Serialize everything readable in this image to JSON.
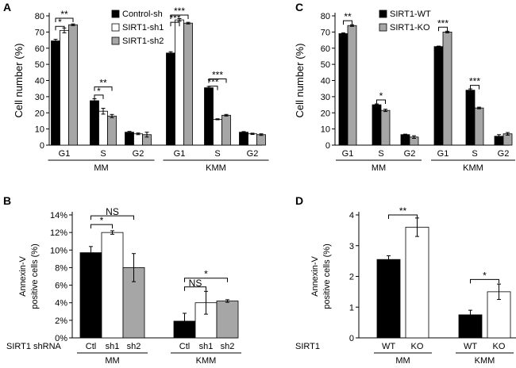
{
  "chart_data": [
    {
      "panel": "A",
      "type": "bar",
      "ylabel": "Cell number (%)",
      "ylim": [
        0,
        80
      ],
      "yticks": [
        0,
        10,
        20,
        30,
        40,
        50,
        60,
        70,
        80
      ],
      "categories": [
        "G1",
        "S",
        "G2",
        "G1",
        "S",
        "G2"
      ],
      "groups": [
        "MM",
        "KMM"
      ],
      "series": [
        {
          "name": "Control-sh",
          "color": "#000000",
          "values": [
            64.5,
            27.5,
            8,
            57,
            35.5,
            8
          ],
          "errors": [
            1,
            1.2,
            0.5,
            0.8,
            0.8,
            0.4
          ]
        },
        {
          "name": "SIRT1-sh1",
          "color": "#ffffff",
          "values": [
            71,
            21,
            7,
            77.5,
            16,
            7
          ],
          "errors": [
            1.5,
            1.8,
            0.5,
            0.8,
            0.3,
            0.4
          ]
        },
        {
          "name": "SIRT1-sh2",
          "color": "#a6a6a6",
          "values": [
            74.5,
            18,
            6.5,
            75.5,
            18.5,
            6.5
          ],
          "errors": [
            0.5,
            1,
            1.5,
            0.5,
            0.5,
            0.5
          ]
        }
      ],
      "significance": [
        {
          "label": "*",
          "cat": 0,
          "from": 0,
          "to": 1,
          "y": 73.5
        },
        {
          "label": "**",
          "cat": 0,
          "from": 0,
          "to": 2,
          "y": 78.5
        },
        {
          "label": "*",
          "cat": 1,
          "from": 0,
          "to": 1,
          "y": 31
        },
        {
          "label": "**",
          "cat": 1,
          "from": 0,
          "to": 2,
          "y": 36
        },
        {
          "label": "***",
          "cat": 3,
          "from": 0,
          "to": 1,
          "y": 76
        },
        {
          "label": "***",
          "cat": 3,
          "from": 0,
          "to": 2,
          "y": 80.5
        },
        {
          "label": "***",
          "cat": 4,
          "from": 0,
          "to": 1,
          "y": 36.5
        },
        {
          "label": "***",
          "cat": 4,
          "from": 0,
          "to": 2,
          "y": 41
        }
      ]
    },
    {
      "panel": "C",
      "type": "bar",
      "ylabel": "Cell number (%)",
      "ylim": [
        0,
        80
      ],
      "yticks": [
        0,
        10,
        20,
        30,
        40,
        50,
        60,
        70,
        80
      ],
      "categories": [
        "G1",
        "S",
        "G2",
        "G1",
        "S",
        "G2"
      ],
      "groups": [
        "MM",
        "KMM"
      ],
      "series": [
        {
          "name": "SIRT1-WT",
          "color": "#000000",
          "values": [
            69,
            25,
            6.5,
            61,
            34,
            5.5
          ],
          "errors": [
            0.5,
            0.5,
            0.3,
            0.3,
            0.8,
            1
          ]
        },
        {
          "name": "SIRT1-KO",
          "color": "#a6a6a6",
          "values": [
            74,
            21.5,
            5,
            70,
            23,
            7
          ],
          "errors": [
            0.5,
            0.7,
            0.8,
            0.5,
            0.5,
            0.8
          ]
        }
      ],
      "significance": [
        {
          "label": "**",
          "cat": 0,
          "from": 0,
          "to": 1,
          "y": 77
        },
        {
          "label": "*",
          "cat": 1,
          "from": 0,
          "to": 1,
          "y": 28
        },
        {
          "label": "***",
          "cat": 3,
          "from": 0,
          "to": 1,
          "y": 73
        },
        {
          "label": "***",
          "cat": 4,
          "from": 0,
          "to": 1,
          "y": 37
        }
      ]
    },
    {
      "panel": "B",
      "type": "bar",
      "ylabel_lines": [
        "Annexin-V",
        "positive cells (%)"
      ],
      "ylim": [
        0,
        14
      ],
      "yticks": [
        0,
        2,
        4,
        6,
        8,
        10,
        12,
        14
      ],
      "tick_suffix": "%",
      "row_label": "SIRT1 shRNA",
      "bar_labels": [
        "Ctl",
        "sh1",
        "sh2",
        "Ctl",
        "sh1",
        "sh2"
      ],
      "groups": [
        "MM",
        "KMM"
      ],
      "bars": [
        {
          "value": 9.7,
          "error": 0.7,
          "color": "#000000"
        },
        {
          "value": 12,
          "error": 0.2,
          "color": "#ffffff"
        },
        {
          "value": 8,
          "error": 1.6,
          "color": "#a6a6a6"
        },
        {
          "value": 1.9,
          "error": 0.9,
          "color": "#000000"
        },
        {
          "value": 4,
          "error": 1.3,
          "color": "#ffffff"
        },
        {
          "value": 4.2,
          "error": 0.15,
          "color": "#a6a6a6"
        }
      ],
      "significance": [
        {
          "label": "*",
          "from": 0,
          "to": 1,
          "y": 12.9
        },
        {
          "label": "NS",
          "from": 0,
          "to": 2,
          "y": 13.9
        },
        {
          "label": "NS",
          "from": 3,
          "to": 4,
          "y": 5.8
        },
        {
          "label": "*",
          "from": 3,
          "to": 5,
          "y": 6.8
        }
      ]
    },
    {
      "panel": "D",
      "type": "bar",
      "ylabel_lines": [
        "Annexin-V",
        "positive cells (%)"
      ],
      "ylim": [
        0,
        4
      ],
      "yticks": [
        0,
        1,
        2,
        3,
        4
      ],
      "row_label": "SIRT1",
      "bar_labels": [
        "WT",
        "KO",
        "WT",
        "KO"
      ],
      "groups": [
        "MM",
        "KMM"
      ],
      "bars": [
        {
          "value": 2.55,
          "error": 0.12,
          "color": "#000000"
        },
        {
          "value": 3.6,
          "error": 0.3,
          "color": "#ffffff"
        },
        {
          "value": 0.75,
          "error": 0.15,
          "color": "#000000"
        },
        {
          "value": 1.5,
          "error": 0.25,
          "color": "#ffffff"
        }
      ],
      "significance": [
        {
          "label": "**",
          "from": 0,
          "to": 1,
          "y": 4.0
        },
        {
          "label": "*",
          "from": 2,
          "to": 3,
          "y": 1.9
        }
      ]
    }
  ]
}
